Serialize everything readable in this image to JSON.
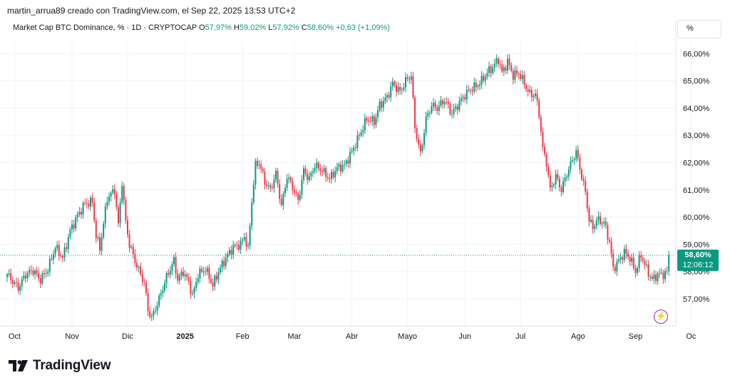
{
  "header": {
    "text": "martin_arrua89 creado con TradingView.com, el Sep 22, 2025 13:53 UTC+2"
  },
  "legend": {
    "symbol": "Market Cap BTC Dominance, % · 1D · CRYPTOCAP",
    "o_label": "O",
    "o_value": "57,97%",
    "h_label": "H",
    "h_value": "59,02%",
    "l_label": "L",
    "l_value": "57,92%",
    "c_label": "C",
    "c_value": "58,60%",
    "change": "+0,63 (+1,09%)"
  },
  "toolbar": {
    "unit_label": "%"
  },
  "brand": {
    "name": "TradingView"
  },
  "colors": {
    "up": "#089981",
    "down": "#f23645",
    "grid": "#f0f3fa",
    "price_line": "#089981"
  },
  "chart_data": {
    "type": "candlestick",
    "ylim": [
      56.1,
      66.7
    ],
    "y_ticks": [
      "57,00%",
      "58,00%",
      "59,00%",
      "60,00%",
      "61,00%",
      "62,00%",
      "63,00%",
      "64,00%",
      "65,00%",
      "66,00%"
    ],
    "y_tick_values": [
      57,
      58,
      59,
      60,
      61,
      62,
      63,
      64,
      65,
      66
    ],
    "x_ticks": [
      "Oct",
      "Nov",
      "Dic",
      "2025",
      "Feb",
      "Mar",
      "Abr",
      "Mayo",
      "Jun",
      "Jul",
      "Ago",
      "Sep",
      "Oc"
    ],
    "x_tick_days": [
      4,
      35,
      65,
      96,
      127,
      155,
      186,
      216,
      247,
      277,
      308,
      339,
      369
    ],
    "current_price": {
      "value": 58.6,
      "label": "58,60%",
      "countdown": "12:06:12"
    },
    "series": [
      {
        "name": "BTC Dominance",
        "points": [
          [
            0,
            57.9
          ],
          [
            6,
            57.4
          ],
          [
            10,
            57.9
          ],
          [
            14,
            58.05
          ],
          [
            18,
            57.7
          ],
          [
            22,
            58.1
          ],
          [
            26,
            58.9
          ],
          [
            30,
            58.5
          ],
          [
            34,
            59.5
          ],
          [
            38,
            60.05
          ],
          [
            42,
            60.5
          ],
          [
            46,
            60.55
          ],
          [
            48,
            59.3
          ],
          [
            50,
            58.85
          ],
          [
            54,
            60.7
          ],
          [
            58,
            61.0
          ],
          [
            60,
            59.7
          ],
          [
            62,
            61.3
          ],
          [
            64,
            59.8
          ],
          [
            66,
            59.0
          ],
          [
            70,
            58.2
          ],
          [
            74,
            57.6
          ],
          [
            76,
            56.6
          ],
          [
            78,
            56.3
          ],
          [
            82,
            57.0
          ],
          [
            86,
            57.8
          ],
          [
            90,
            58.4
          ],
          [
            92,
            57.7
          ],
          [
            95,
            58.0
          ],
          [
            98,
            57.6
          ],
          [
            100,
            57.1
          ],
          [
            103,
            57.9
          ],
          [
            107,
            58.1
          ],
          [
            111,
            57.5
          ],
          [
            114,
            58.0
          ],
          [
            118,
            58.5
          ],
          [
            122,
            58.9
          ],
          [
            126,
            59.0
          ],
          [
            128,
            59.3
          ],
          [
            130,
            58.8
          ],
          [
            132,
            60.6
          ],
          [
            134,
            61.9
          ],
          [
            136,
            62.0
          ],
          [
            139,
            61.3
          ],
          [
            142,
            61.0
          ],
          [
            145,
            61.6
          ],
          [
            148,
            60.4
          ],
          [
            151,
            61.5
          ],
          [
            154,
            61.1
          ],
          [
            157,
            60.6
          ],
          [
            160,
            61.7
          ],
          [
            163,
            61.4
          ],
          [
            166,
            61.9
          ],
          [
            170,
            61.7
          ],
          [
            174,
            61.4
          ],
          [
            178,
            61.8
          ],
          [
            182,
            61.9
          ],
          [
            186,
            62.4
          ],
          [
            190,
            63.0
          ],
          [
            194,
            63.6
          ],
          [
            198,
            63.5
          ],
          [
            201,
            64.1
          ],
          [
            205,
            64.4
          ],
          [
            208,
            64.9
          ],
          [
            212,
            64.6
          ],
          [
            215,
            65.0
          ],
          [
            218,
            65.2
          ],
          [
            220,
            63.3
          ],
          [
            223,
            62.3
          ],
          [
            226,
            63.6
          ],
          [
            229,
            64.1
          ],
          [
            232,
            64.0
          ],
          [
            236,
            64.3
          ],
          [
            240,
            63.8
          ],
          [
            243,
            64.1
          ],
          [
            246,
            64.4
          ],
          [
            250,
            64.7
          ],
          [
            253,
            64.8
          ],
          [
            256,
            65.0
          ],
          [
            259,
            65.3
          ],
          [
            262,
            65.5
          ],
          [
            265,
            65.8
          ],
          [
            267,
            65.3
          ],
          [
            270,
            65.7
          ],
          [
            273,
            65.2
          ],
          [
            276,
            65.3
          ],
          [
            279,
            64.9
          ],
          [
            282,
            64.5
          ],
          [
            285,
            64.5
          ],
          [
            287,
            63.8
          ],
          [
            289,
            62.5
          ],
          [
            291,
            62.0
          ],
          [
            293,
            61.0
          ],
          [
            296,
            61.5
          ],
          [
            299,
            61.0
          ],
          [
            302,
            61.6
          ],
          [
            305,
            62.1
          ],
          [
            307,
            62.4
          ],
          [
            309,
            61.8
          ],
          [
            312,
            60.9
          ],
          [
            314,
            59.9
          ],
          [
            316,
            59.6
          ],
          [
            318,
            59.9
          ],
          [
            322,
            59.8
          ],
          [
            325,
            59.1
          ],
          [
            327,
            58.1
          ],
          [
            330,
            58.4
          ],
          [
            333,
            58.7
          ],
          [
            336,
            58.5
          ],
          [
            339,
            58.0
          ],
          [
            342,
            58.6
          ],
          [
            345,
            58.1
          ],
          [
            348,
            57.7
          ],
          [
            351,
            57.9
          ],
          [
            354,
            57.9
          ],
          [
            356,
            57.97
          ],
          [
            357,
            58.6
          ]
        ]
      }
    ]
  }
}
